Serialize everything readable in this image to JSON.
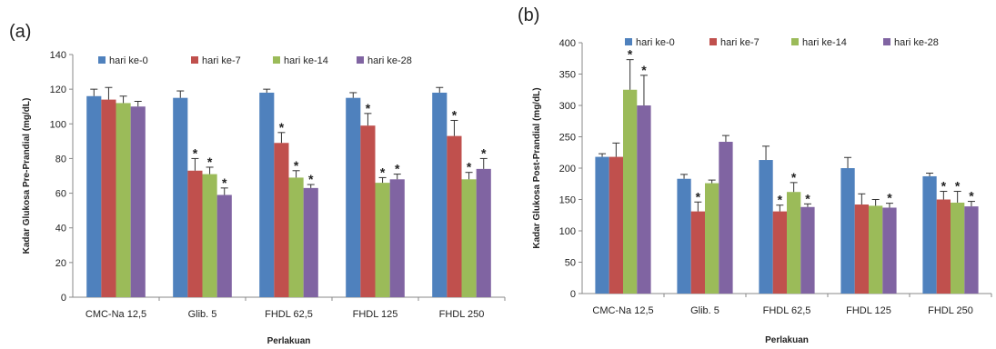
{
  "colors": {
    "series": [
      "#4F81BD",
      "#C0504D",
      "#9BBB59",
      "#8064A2"
    ],
    "axis": "#888888",
    "text": "#222222"
  },
  "legend": [
    "hari ke-0",
    "hari ke-7",
    "hari ke-14",
    "hari ke-28"
  ],
  "panels": [
    {
      "label": "(a)"
    },
    {
      "label": "(b)"
    }
  ],
  "chart_data": [
    {
      "type": "bar",
      "title": "",
      "xlabel": "Perlakuan",
      "ylabel": "Kadar Glukosa Pre-Prandial (mg/dL)",
      "ylim": [
        0,
        140
      ],
      "yticks": [
        0,
        20,
        40,
        60,
        80,
        100,
        120,
        140
      ],
      "categories": [
        "CMC-Na 12,5",
        "Glib. 5",
        "FHDL 62,5",
        "FHDL 125",
        "FHDL 250"
      ],
      "legend_position": "top",
      "series": [
        {
          "name": "hari ke-0",
          "values": [
            116,
            115,
            118,
            115,
            118
          ],
          "errors": [
            4,
            4,
            2,
            3,
            3
          ],
          "significant": [
            false,
            false,
            false,
            false,
            false
          ]
        },
        {
          "name": "hari ke-7",
          "values": [
            114,
            73,
            89,
            99,
            93
          ],
          "errors": [
            7,
            7,
            6,
            7,
            9
          ],
          "significant": [
            false,
            true,
            true,
            true,
            true
          ]
        },
        {
          "name": "hari ke-14",
          "values": [
            112,
            71,
            69,
            66,
            68
          ],
          "errors": [
            4,
            4,
            4,
            3,
            4
          ],
          "significant": [
            false,
            true,
            true,
            true,
            true
          ]
        },
        {
          "name": "hari ke-28",
          "values": [
            110,
            59,
            63,
            68,
            74
          ],
          "errors": [
            3,
            4,
            2,
            3,
            6
          ],
          "significant": [
            false,
            true,
            true,
            true,
            true
          ]
        }
      ]
    },
    {
      "type": "bar",
      "title": "",
      "xlabel": "Perlakuan",
      "ylabel": "Kadar Glukosa Post-Prandial (mg/dL)",
      "ylim": [
        0,
        400
      ],
      "yticks": [
        0,
        50,
        100,
        150,
        200,
        250,
        300,
        350,
        400
      ],
      "categories": [
        "CMC-Na 12,5",
        "Glib. 5",
        "FHDL 62,5",
        "FHDL 125",
        "FHDL 250"
      ],
      "legend_position": "top",
      "series": [
        {
          "name": "hari ke-0",
          "values": [
            218,
            183,
            213,
            200,
            187
          ],
          "errors": [
            5,
            7,
            22,
            17,
            5
          ],
          "significant": [
            false,
            false,
            false,
            false,
            false
          ]
        },
        {
          "name": "hari ke-7",
          "values": [
            218,
            131,
            131,
            142,
            150
          ],
          "errors": [
            22,
            15,
            10,
            17,
            13
          ],
          "significant": [
            false,
            true,
            true,
            false,
            true
          ]
        },
        {
          "name": "hari ke-14",
          "values": [
            325,
            176,
            162,
            140,
            145
          ],
          "errors": [
            48,
            5,
            15,
            10,
            18
          ],
          "significant": [
            true,
            false,
            true,
            false,
            true
          ]
        },
        {
          "name": "hari ke-28",
          "values": [
            300,
            242,
            138,
            137,
            139
          ],
          "errors": [
            48,
            10,
            5,
            7,
            8
          ],
          "significant": [
            true,
            false,
            true,
            true,
            true
          ]
        }
      ]
    }
  ]
}
